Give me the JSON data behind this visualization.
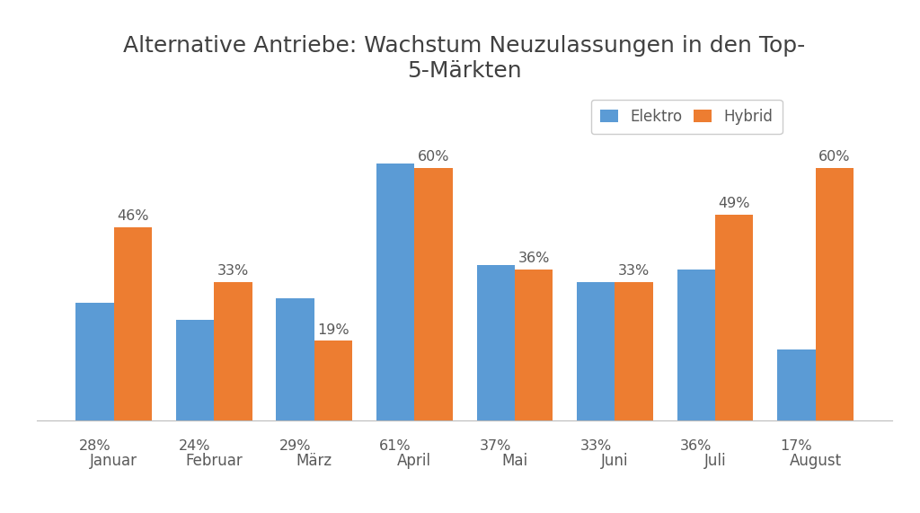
{
  "title": "Alternative Antriebe: Wachstum Neuzulassungen in den Top-\n5-Märkten",
  "categories": [
    "Januar",
    "Februar",
    "März",
    "April",
    "Mai",
    "Juni",
    "Juli",
    "August"
  ],
  "elektro": [
    28,
    24,
    29,
    61,
    37,
    33,
    36,
    17
  ],
  "hybrid": [
    46,
    33,
    19,
    60,
    36,
    33,
    49,
    60
  ],
  "elektro_color": "#5B9BD5",
  "hybrid_color": "#ED7D31",
  "background_color": "#FFFFFF",
  "bar_width": 0.38,
  "legend_labels": [
    "Elektro",
    "Hybrid"
  ],
  "title_fontsize": 18,
  "tick_fontsize": 12,
  "annotation_fontsize": 11.5,
  "legend_fontsize": 12,
  "ylim": [
    0,
    78
  ],
  "label_color": "#595959"
}
